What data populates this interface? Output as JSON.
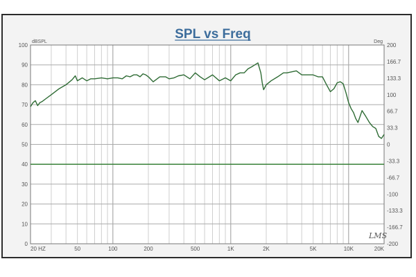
{
  "chart_data": {
    "type": "line",
    "title": "SPL vs Freq",
    "y_unit_left": "dBSPL",
    "y_unit_right": "Deg",
    "x_scale": "log",
    "xlim": [
      20,
      20000
    ],
    "ylim": [
      0,
      100
    ],
    "y2lim": [
      -200,
      200
    ],
    "grid": true,
    "x_tick_labels": [
      {
        "value": 20,
        "label": "20 HZ"
      },
      {
        "value": 50,
        "label": "50"
      },
      {
        "value": 100,
        "label": "100"
      },
      {
        "value": 200,
        "label": "200"
      },
      {
        "value": 500,
        "label": "500"
      },
      {
        "value": 1000,
        "label": "1K"
      },
      {
        "value": 2000,
        "label": "2K"
      },
      {
        "value": 5000,
        "label": "5K"
      },
      {
        "value": 10000,
        "label": "10K"
      },
      {
        "value": 20000,
        "label": "20K"
      }
    ],
    "y_ticks_left": [
      "0",
      "10",
      "20",
      "30",
      "40",
      "50",
      "60",
      "70",
      "80",
      "90",
      "100"
    ],
    "y_ticks_right": [
      "-200",
      "-166.7",
      "-133.3",
      "-100",
      "-66.7",
      "-33.3",
      "0",
      "33.3",
      "66.7",
      "100",
      "133.3",
      "166.7",
      "200"
    ],
    "series": [
      {
        "color": "#2e6b34",
        "x": [
          20,
          21,
          22,
          23,
          24,
          25,
          27,
          30,
          35,
          40,
          45,
          48,
          50,
          55,
          60,
          65,
          70,
          80,
          90,
          100,
          110,
          120,
          130,
          140,
          150,
          160,
          170,
          180,
          190,
          200,
          220,
          250,
          280,
          300,
          330,
          360,
          400,
          450,
          500,
          550,
          600,
          700,
          800,
          900,
          1000,
          1100,
          1200,
          1300,
          1400,
          1500,
          1600,
          1700,
          1800,
          1850,
          1900,
          2000,
          2200,
          2500,
          2800,
          3000,
          3300,
          3600,
          4000,
          4500,
          5000,
          5500,
          6000,
          6500,
          7000,
          7500,
          8000,
          8500,
          9000,
          9500,
          10000,
          10500,
          11000,
          11500,
          12000,
          13000,
          14000,
          15000,
          16000,
          17000,
          18000,
          19000,
          20000
        ],
        "values": [
          69,
          71,
          72,
          69.5,
          71,
          71.5,
          73,
          75,
          78,
          80,
          82.5,
          84.5,
          82,
          83.5,
          82,
          83,
          83,
          83.5,
          83,
          83.5,
          83.5,
          83,
          84.5,
          84,
          85,
          85,
          84,
          85.5,
          85,
          84,
          81.5,
          84,
          84,
          83,
          83.5,
          84.5,
          85,
          83,
          86,
          84,
          82.5,
          85,
          82,
          83.5,
          82,
          85,
          86,
          86,
          88,
          89,
          90,
          91,
          86,
          81,
          77.5,
          80,
          82,
          84,
          86,
          86,
          86.5,
          87,
          85,
          85,
          85,
          84,
          84,
          80,
          76.5,
          78,
          81,
          81.5,
          80.5,
          76,
          71,
          68,
          66,
          63,
          61,
          67,
          64,
          61,
          59,
          58,
          54,
          53,
          55
        ]
      },
      {
        "color": "#2a7a2a",
        "x": [
          20,
          20000
        ],
        "values": [
          40,
          40
        ]
      }
    ],
    "annotation": "LMS"
  }
}
